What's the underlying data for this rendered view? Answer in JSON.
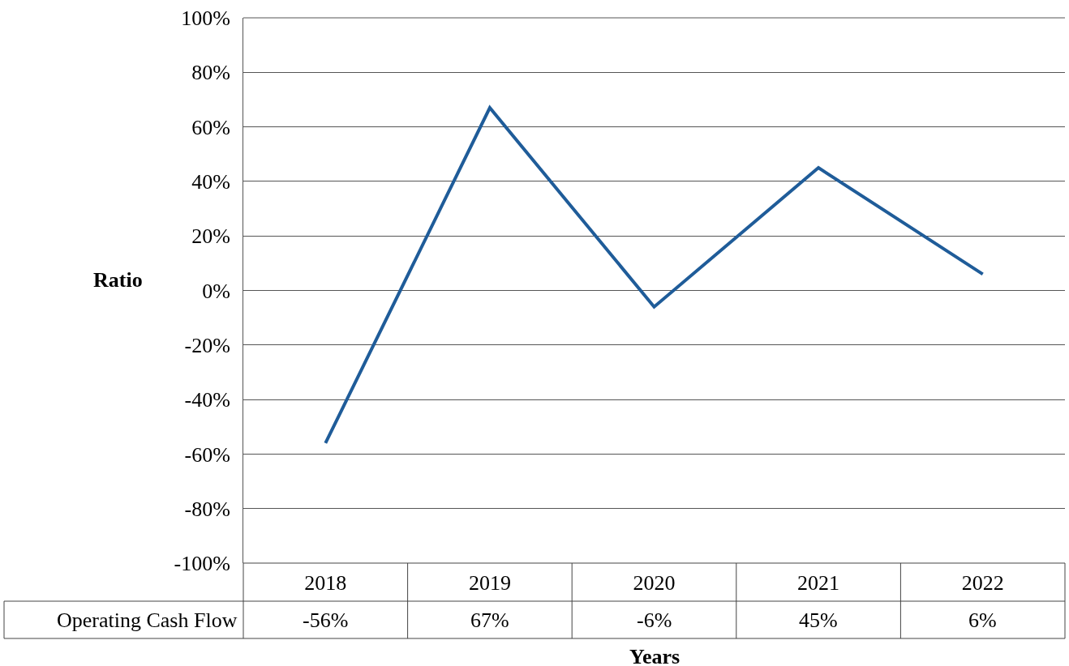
{
  "chart_data": {
    "type": "line",
    "xlabel": "Years",
    "ylabel": "Ratio",
    "categories": [
      "2018",
      "2019",
      "2020",
      "2021",
      "2022"
    ],
    "series": [
      {
        "name": "Operating Cash Flow",
        "color": "#1f5c99",
        "values": [
          -56,
          67,
          -6,
          45,
          6
        ],
        "value_labels": [
          "-56%",
          "67%",
          "-6%",
          "45%",
          "6%"
        ]
      }
    ],
    "ylim": [
      -100,
      100
    ],
    "yticks": [
      {
        "value": -100,
        "label": "-100%"
      },
      {
        "value": -80,
        "label": "-80%"
      },
      {
        "value": -60,
        "label": "-60%"
      },
      {
        "value": -40,
        "label": "-40%"
      },
      {
        "value": -20,
        "label": "-20%"
      },
      {
        "value": 0,
        "label": "0%"
      },
      {
        "value": 20,
        "label": "20%"
      },
      {
        "value": 40,
        "label": "40%"
      },
      {
        "value": 60,
        "label": "60%"
      },
      {
        "value": 80,
        "label": "80%"
      },
      {
        "value": 100,
        "label": "100%"
      }
    ],
    "grid": "y",
    "marker": "none",
    "line_style": "solid"
  }
}
